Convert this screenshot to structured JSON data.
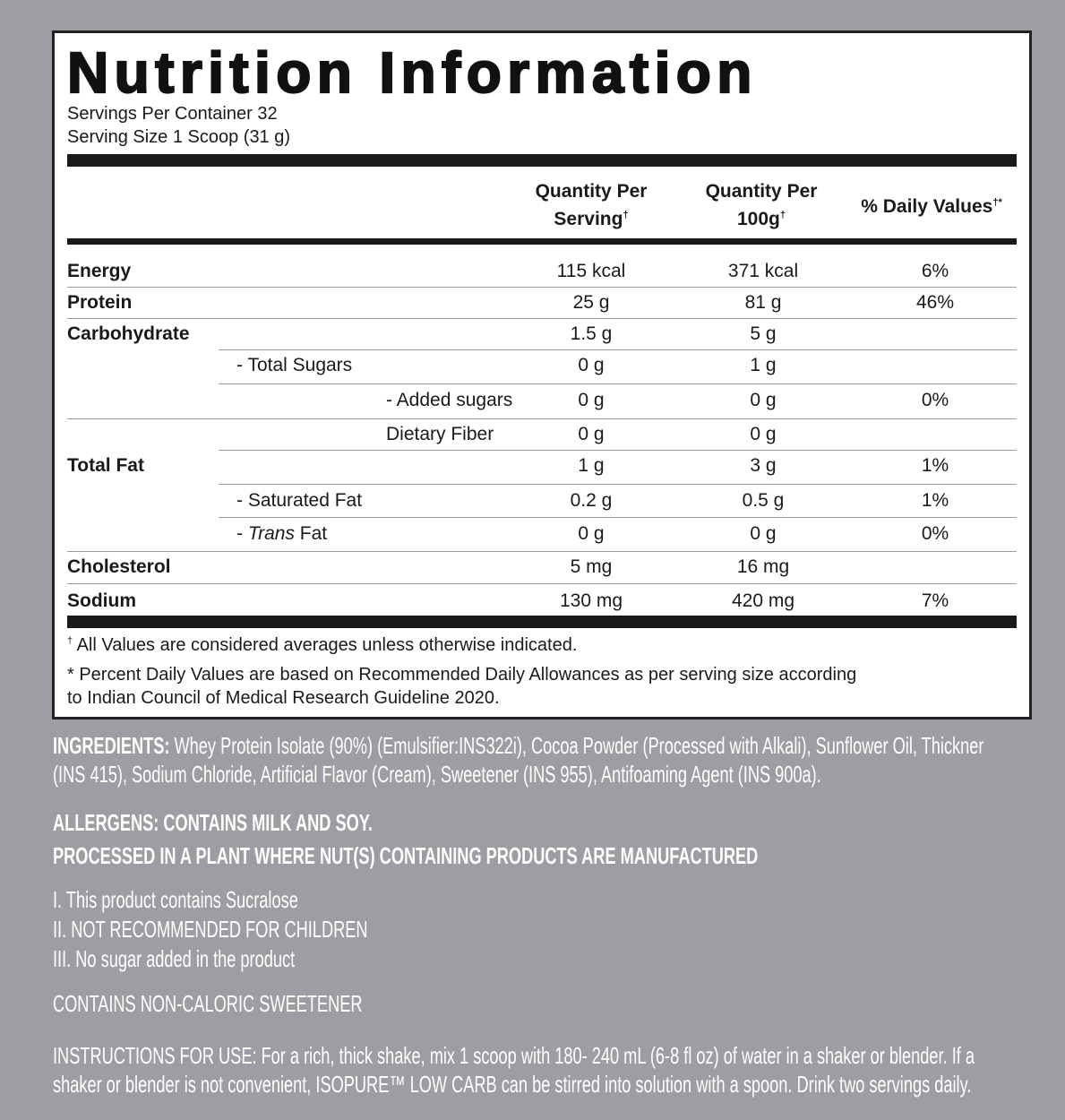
{
  "title": "Nutrition Information",
  "servings_per_container": "Servings Per Container 32",
  "serving_size": "Serving Size 1 Scoop (31 g)",
  "headers": {
    "per_serving_1": "Quantity Per",
    "per_serving_2": "Serving",
    "per_100g_1": "Quantity Per",
    "per_100g_2": "100g",
    "daily_values": "% Daily Values",
    "dagger": "†",
    "dagger_star": "†*"
  },
  "rows": [
    {
      "label": "Energy",
      "level": 0,
      "serving": "115 kcal",
      "per100": "371 kcal",
      "dv": "6%"
    },
    {
      "label": "Protein",
      "level": 0,
      "serving": "25 g",
      "per100": "81 g",
      "dv": "46%"
    },
    {
      "label": "Carbohydrate",
      "level": 0,
      "serving": "1.5 g",
      "per100": "5 g",
      "dv": ""
    },
    {
      "label": "- Total Sugars",
      "level": 1,
      "serving": "0 g",
      "per100": "1 g",
      "dv": ""
    },
    {
      "label": "- Added sugars",
      "level": 2,
      "serving": "0 g",
      "per100": "0 g",
      "dv": "0%"
    },
    {
      "label": "Dietary Fiber",
      "level": 2,
      "serving": "0 g",
      "per100": "0 g",
      "dv": ""
    },
    {
      "label": "Total Fat",
      "level": 0,
      "serving": "1 g",
      "per100": "3 g",
      "dv": "1%"
    },
    {
      "label": "- Saturated Fat",
      "level": 1,
      "serving": "0.2 g",
      "per100": "0.5 g",
      "dv": "1%"
    },
    {
      "label": "- Trans Fat",
      "level": 1,
      "serving": "0 g",
      "per100": "0 g",
      "dv": "0%"
    },
    {
      "label": "Cholesterol",
      "level": 0,
      "serving": "5 mg",
      "per100": "16 mg",
      "dv": ""
    },
    {
      "label": "Sodium",
      "level": 0,
      "serving": "130 mg",
      "per100": "420 mg",
      "dv": "7%"
    }
  ],
  "footnotes": {
    "dagger_note": "All Values are considered averages unless otherwise indicated.",
    "dv_note_1": "* Percent Daily Values are based on Recommended Daily Allowances as per serving size according",
    "dv_note_2": "to Indian Council of Medical Research Guideline 2020."
  },
  "ingredients": {
    "label": "INGREDIENTS:",
    "line1": "Whey Protein Isolate (90%) (Emulsifier:INS322i),  Cocoa Powder (Processed with Alkali), Sunflower Oil, Thickner",
    "line2": "(INS 415), Sodium Chloride, Artificial Flavor (Cream), Sweetener (INS 955), Antifoaming Agent (INS 900a)."
  },
  "allergens": "ALLERGENS: CONTAINS MILK AND SOY.",
  "processed": "PROCESSED IN A PLANT WHERE NUT(S) CONTAINING PRODUCTS ARE MANUFACTURED",
  "notes": [
    "I. This product contains Sucralose",
    "II. NOT RECOMMENDED FOR CHILDREN",
    "III. No sugar added in the product"
  ],
  "sweetener": "CONTAINS NON-CALORIC SWEETENER",
  "instructions": [
    "INSTRUCTIONS FOR USE: For a rich, thick shake, mix 1 scoop with 180- 240 mL (6-8 fl oz) of water in a shaker or blender. If a",
    "shaker or blender is not convenient, ISOPURE™ LOW CARB can be stirred into solution with a spoon. Drink two servings daily."
  ]
}
